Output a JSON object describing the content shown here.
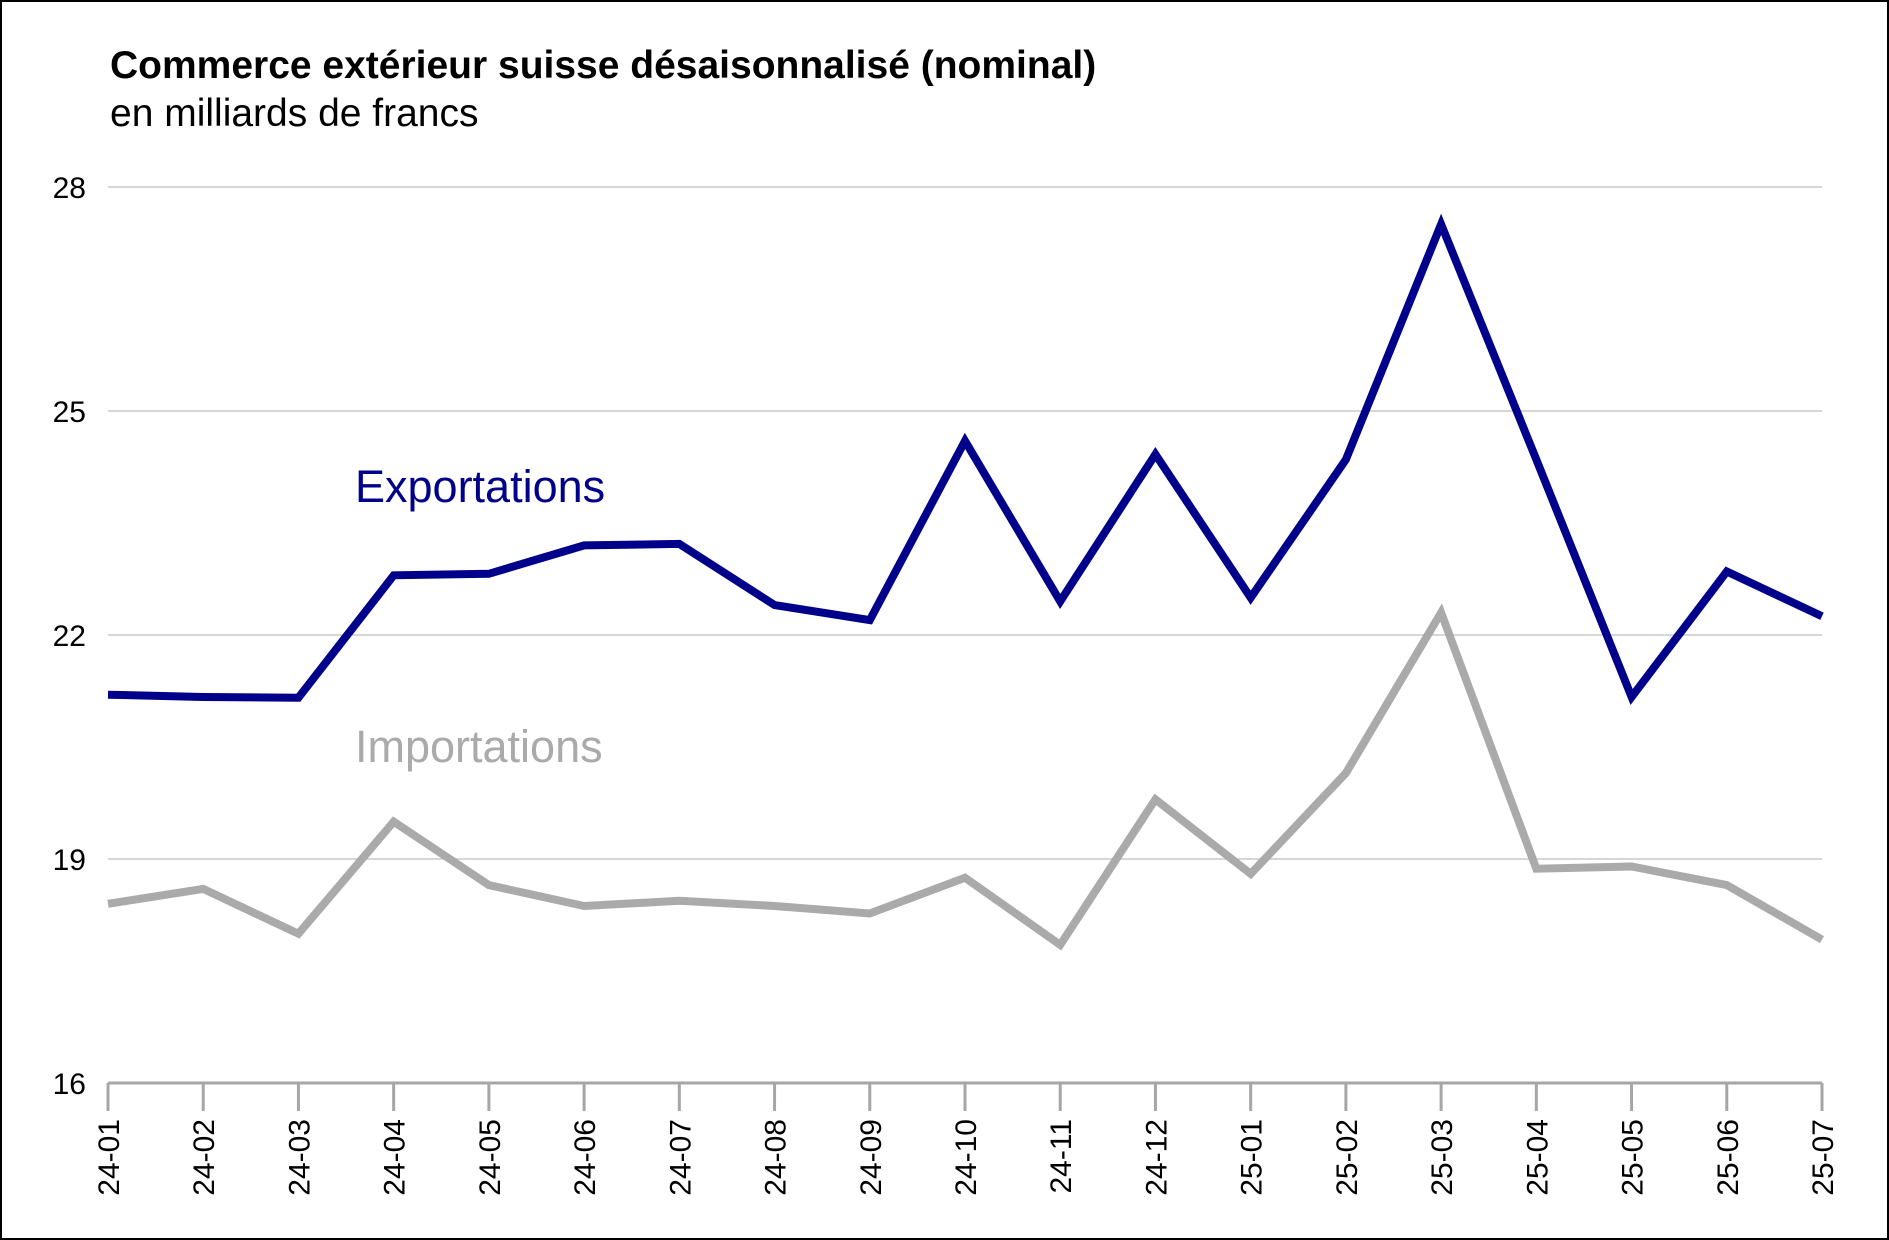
{
  "chart_data": {
    "type": "line",
    "title": "Commerce extérieur suisse désaisonnalisé (nominal)",
    "subtitle": "en milliards de francs",
    "x": [
      "24-01",
      "24-02",
      "24-03",
      "24-04",
      "24-05",
      "24-06",
      "24-07",
      "24-08",
      "24-09",
      "24-10",
      "24-11",
      "24-12",
      "25-01",
      "25-02",
      "25-03",
      "25-04",
      "25-05",
      "25-06",
      "25-07"
    ],
    "ylim": [
      16,
      28
    ],
    "yticks": [
      16,
      19,
      22,
      25,
      28
    ],
    "grid": true,
    "series": [
      {
        "name": "Exportations",
        "color": "#00008b",
        "values": [
          21.2,
          21.17,
          21.16,
          22.8,
          22.82,
          23.2,
          23.22,
          22.4,
          22.2,
          24.6,
          22.45,
          24.42,
          22.5,
          24.35,
          27.5,
          24.35,
          21.17,
          22.85,
          22.25
        ]
      },
      {
        "name": "Importations",
        "color": "#aaaaaa",
        "values": [
          18.4,
          18.6,
          18.0,
          19.5,
          18.65,
          18.37,
          18.44,
          18.37,
          18.27,
          18.75,
          17.85,
          19.8,
          18.8,
          20.15,
          22.3,
          18.87,
          18.9,
          18.65,
          17.92
        ]
      }
    ]
  }
}
